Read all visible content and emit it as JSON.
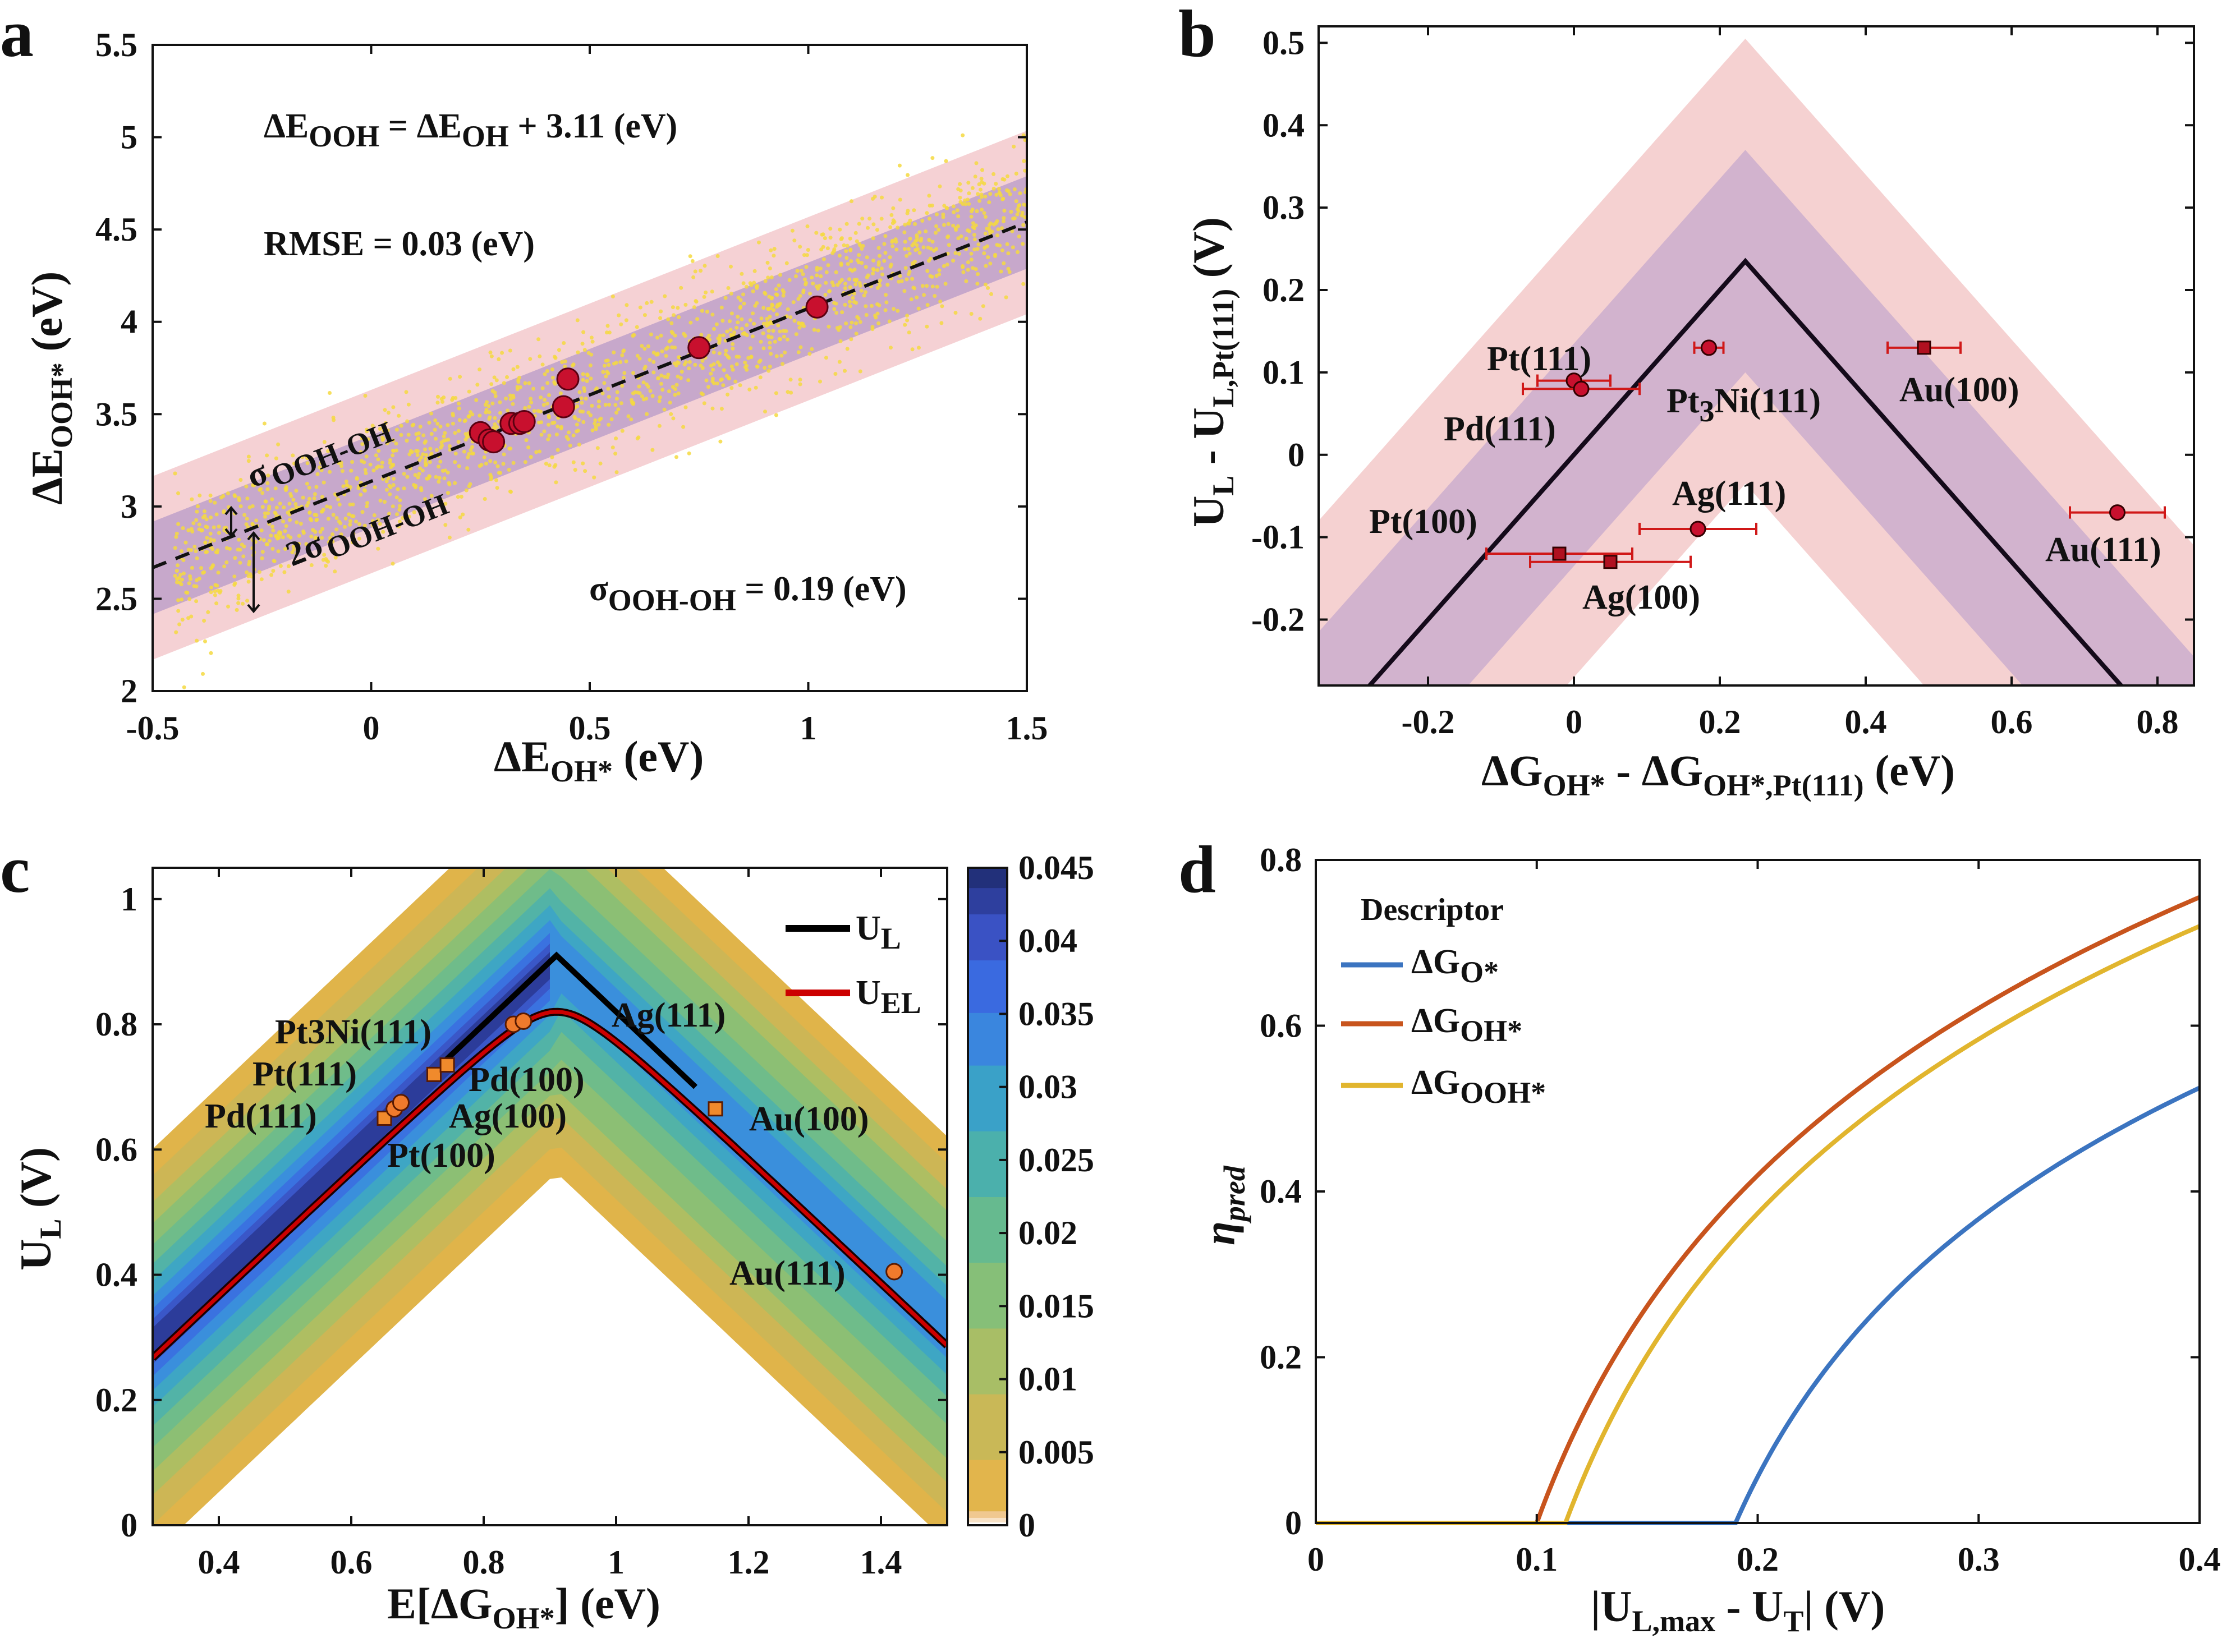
{
  "panels": {
    "a": {
      "letter": "a",
      "chart_data": {
        "type": "scatter",
        "xlim": [
          -0.5,
          1.5
        ],
        "ylim": [
          2,
          5.5
        ],
        "xticks": [
          "-0.5",
          "0",
          "0.5",
          "1",
          "1.5"
        ],
        "yticks": [
          "2",
          "2.5",
          "3",
          "3.5",
          "4",
          "4.5",
          "5",
          "5.5"
        ],
        "xlabel": {
          "main": "ΔE",
          "sub": "OH*",
          "tail": " (eV)"
        },
        "ylabel": {
          "main": "ΔE",
          "sub": "OOH*",
          "tail": " (eV)"
        },
        "fit": {
          "slope": 1,
          "intercept": 3.11
        },
        "sigma": 0.19,
        "points": [
          [
            0.25,
            3.4
          ],
          [
            0.27,
            3.36
          ],
          [
            0.28,
            3.35
          ],
          [
            0.32,
            3.45
          ],
          [
            0.34,
            3.45
          ],
          [
            0.35,
            3.46
          ],
          [
            0.44,
            3.54
          ],
          [
            0.45,
            3.69
          ],
          [
            0.75,
            3.86
          ],
          [
            1.02,
            4.08
          ]
        ],
        "equation": {
          "lhs": "ΔE",
          "lhs_sub": "OOH",
          "mid": " = ΔE",
          "mid_sub": "OH",
          "rhs": " + 3.11 (eV)"
        },
        "rmse": "RMSE = 0.03 (eV)",
        "sigma_text": {
          "sym": "σ",
          "sub": "OOH-OH",
          "tail": " = 0.19 (eV)"
        },
        "band1": {
          "sym": "σ",
          "sub": "OOH-OH"
        },
        "band2": {
          "sym": "2σ",
          "sub": "OOH-OH"
        }
      }
    },
    "b": {
      "letter": "b",
      "chart_data": {
        "type": "scatter",
        "xlim": [
          -0.35,
          0.85
        ],
        "ylim": [
          -0.28,
          0.52
        ],
        "xticks": [
          "-0.2",
          "0",
          "0.2",
          "0.4",
          "0.6",
          "0.8"
        ],
        "xtick_vals": [
          -0.2,
          0,
          0.2,
          0.4,
          0.6,
          0.8
        ],
        "yticks": [
          "-0.2",
          "-0.1",
          "0",
          "0.1",
          "0.2",
          "0.3",
          "0.4",
          "0.5"
        ],
        "ytick_vals": [
          -0.2,
          -0.1,
          0,
          0.1,
          0.2,
          0.3,
          0.4,
          0.5
        ],
        "xlabel": {
          "a": "ΔG",
          "a_sub": "OH*",
          "b": " - ΔG",
          "b_sub": "OH*,Pt(111)",
          "tail": " (eV)"
        },
        "ylabel": {
          "a": "U",
          "a_sub": "L",
          "b": " - U",
          "b_sub": "L,Pt(111)",
          "tail": " (V)"
        },
        "volcano_peak": [
          0.235,
          0.235
        ],
        "points": [
          {
            "x": 0.0,
            "y": 0.09,
            "err": 0.05,
            "m": "c"
          },
          {
            "x": 0.01,
            "y": 0.08,
            "err": 0.08,
            "m": "c"
          },
          {
            "x": 0.185,
            "y": 0.13,
            "err": 0.02,
            "m": "c"
          },
          {
            "x": 0.48,
            "y": 0.13,
            "err": 0.05,
            "m": "s"
          },
          {
            "x": 0.17,
            "y": -0.09,
            "err": 0.08,
            "m": "c"
          },
          {
            "x": 0.745,
            "y": -0.07,
            "err": 0.065,
            "m": "c"
          },
          {
            "x": -0.02,
            "y": -0.12,
            "err": 0.1,
            "m": "s"
          },
          {
            "x": 0.05,
            "y": -0.13,
            "err": 0.11,
            "m": "s"
          }
        ],
        "labels": [
          "Pt(111)",
          "Pd(111)",
          "Pt(100)",
          "Ag(111)",
          "Ag(100)",
          "Au(100)",
          "Au(111)"
        ],
        "pt3ni": {
          "a": "Pt",
          "sub": "3",
          "b": "Ni(111)"
        }
      }
    },
    "c": {
      "letter": "c",
      "chart_data": {
        "type": "heatmap",
        "xlim": [
          0.3,
          1.5
        ],
        "ylim": [
          0,
          1.05
        ],
        "xticks": [
          "0.4",
          "0.6",
          "0.8",
          "1",
          "1.2",
          "1.4"
        ],
        "xtick_vals": [
          0.4,
          0.6,
          0.8,
          1.0,
          1.2,
          1.4
        ],
        "yticks": [
          "0",
          "0.2",
          "0.4",
          "0.6",
          "0.8",
          "1"
        ],
        "ytick_vals": [
          0,
          0.2,
          0.4,
          0.6,
          0.8,
          1.0
        ],
        "xlabel": {
          "a": "E[ΔG",
          "sub": "OH*",
          "tail": "] (eV)"
        },
        "ylabel": {
          "a": "U",
          "sub": "L",
          "tail": " (V)"
        },
        "colorbar": {
          "min": 0,
          "max": 0.045,
          "ticks": [
            "0",
            "0.005",
            "0.01",
            "0.015",
            "0.02",
            "0.025",
            "0.03",
            "0.035",
            "0.04",
            "0.045"
          ]
        },
        "legend": [
          {
            "a": "U",
            "sub": "L",
            "color": "#000000"
          },
          {
            "a": "U",
            "sub": "EL",
            "color": "#cc0000"
          }
        ],
        "labels": [
          "Pt3Ni(111)",
          "Ag(111)",
          "Pt(111)",
          "Pd(111)",
          "Pd(100)",
          "Ag(100)",
          "Pt(100)",
          "Au(100)",
          "Au(111)"
        ],
        "points": [
          {
            "x": 0.65,
            "y": 0.65,
            "m": "s"
          },
          {
            "x": 0.665,
            "y": 0.665,
            "m": "c"
          },
          {
            "x": 0.675,
            "y": 0.675,
            "m": "c"
          },
          {
            "x": 0.725,
            "y": 0.72,
            "m": "s"
          },
          {
            "x": 0.745,
            "y": 0.735,
            "m": "s"
          },
          {
            "x": 0.845,
            "y": 0.8,
            "m": "c"
          },
          {
            "x": 0.86,
            "y": 0.805,
            "m": "c"
          },
          {
            "x": 1.15,
            "y": 0.665,
            "m": "s"
          },
          {
            "x": 1.42,
            "y": 0.405,
            "m": "c"
          }
        ]
      }
    },
    "d": {
      "letter": "d",
      "chart_data": {
        "type": "line",
        "xlim": [
          0,
          0.4
        ],
        "ylim": [
          0,
          0.8
        ],
        "xticks": [
          "0",
          "0.1",
          "0.2",
          "0.3",
          "0.4"
        ],
        "xtick_vals": [
          0,
          0.1,
          0.2,
          0.3,
          0.4
        ],
        "yticks": [
          "0",
          "0.2",
          "0.4",
          "0.6",
          "0.8"
        ],
        "ytick_vals": [
          0,
          0.2,
          0.4,
          0.6,
          0.8
        ],
        "xlabel": {
          "a": "|U",
          "sub": "L,max",
          "b": " - U",
          "sub2": "T",
          "tail": "| (V)"
        },
        "ylabel": {
          "a": "η",
          "sub": "pred"
        },
        "legend_title": "Descriptor",
        "series": [
          {
            "name": "ΔG",
            "sub": "O*",
            "color": "#3b74c0",
            "x0": 0.19,
            "values_at_04": 0.525
          },
          {
            "name": "ΔG",
            "sub": "OH*",
            "color": "#c8541d",
            "x0": 0.1,
            "values_at_04": 0.755
          },
          {
            "name": "ΔG",
            "sub": "OOH*",
            "color": "#e1b52e",
            "x0": 0.113,
            "values_at_04": 0.72
          }
        ]
      }
    }
  }
}
